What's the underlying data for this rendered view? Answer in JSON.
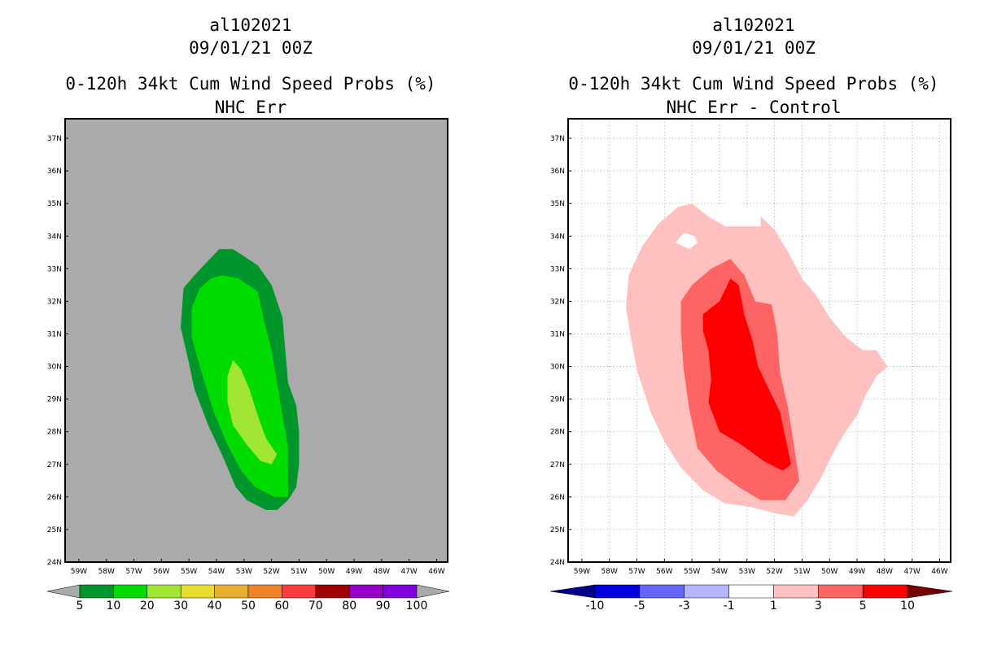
{
  "chart_data": [
    {
      "type": "heatmap",
      "storm_id": "al102021",
      "datetime": "09/01/21 00Z",
      "title": "0-120h 34kt Cum Wind Speed Probs (%)",
      "subtitle": "NHC Err",
      "background": "#aaaaaa",
      "grid": false,
      "x_ticks": [
        "59W",
        "58W",
        "57W",
        "56W",
        "55W",
        "54W",
        "53W",
        "52W",
        "51W",
        "50W",
        "49W",
        "48W",
        "47W",
        "46W"
      ],
      "y_ticks": [
        "24N",
        "25N",
        "26N",
        "27N",
        "28N",
        "29N",
        "30N",
        "31N",
        "32N",
        "33N",
        "34N",
        "35N",
        "36N",
        "37N"
      ],
      "xlim": [
        -59.5,
        -45.6
      ],
      "ylim": [
        24,
        37.6
      ],
      "colorbar": {
        "ticks": [
          "5",
          "10",
          "20",
          "30",
          "40",
          "50",
          "60",
          "70",
          "80",
          "90",
          "100"
        ],
        "colors": [
          "#00962b",
          "#00dc00",
          "#a0e632",
          "#e6dc32",
          "#e6af2d",
          "#f08228",
          "#fa3c3c",
          "#a00000",
          "#9500c8",
          "#8200dc"
        ],
        "end_color": "#aaaaaa"
      },
      "contours": [
        {
          "level": "5-10%",
          "color": "#00962b",
          "points": [
            [
              -53.9,
              33.6
            ],
            [
              -53.4,
              33.6
            ],
            [
              -52.5,
              33.1
            ],
            [
              -52.0,
              32.5
            ],
            [
              -51.6,
              31.5
            ],
            [
              -51.5,
              30.5
            ],
            [
              -51.4,
              29.5
            ],
            [
              -51.1,
              28.8
            ],
            [
              -51.0,
              28.0
            ],
            [
              -51.0,
              27.0
            ],
            [
              -51.1,
              26.3
            ],
            [
              -51.4,
              25.9
            ],
            [
              -51.8,
              25.6
            ],
            [
              -52.2,
              25.6
            ],
            [
              -52.9,
              25.9
            ],
            [
              -53.3,
              26.3
            ],
            [
              -53.8,
              27.3
            ],
            [
              -54.3,
              28.2
            ],
            [
              -54.8,
              29.3
            ],
            [
              -55.0,
              30.1
            ],
            [
              -55.3,
              31.2
            ],
            [
              -55.2,
              32.4
            ],
            [
              -54.8,
              32.8
            ]
          ]
        },
        {
          "level": "10-20%",
          "color": "#00dc00",
          "points": [
            [
              -53.8,
              32.8
            ],
            [
              -53.2,
              32.7
            ],
            [
              -52.5,
              32.3
            ],
            [
              -52.3,
              31.5
            ],
            [
              -52.0,
              30.5
            ],
            [
              -51.8,
              29.5
            ],
            [
              -51.6,
              28.5
            ],
            [
              -51.4,
              27.5
            ],
            [
              -51.4,
              26.8
            ],
            [
              -51.4,
              26.0
            ],
            [
              -51.9,
              26.0
            ],
            [
              -52.6,
              26.3
            ],
            [
              -53.1,
              26.8
            ],
            [
              -53.6,
              27.6
            ],
            [
              -54.1,
              28.6
            ],
            [
              -54.5,
              29.7
            ],
            [
              -54.9,
              30.9
            ],
            [
              -54.9,
              31.8
            ],
            [
              -54.6,
              32.4
            ],
            [
              -54.2,
              32.7
            ]
          ]
        },
        {
          "level": "20-30%",
          "color": "#a0e632",
          "points": [
            [
              -53.4,
              30.2
            ],
            [
              -53.1,
              29.9
            ],
            [
              -52.8,
              29.3
            ],
            [
              -52.5,
              28.5
            ],
            [
              -52.2,
              27.8
            ],
            [
              -51.8,
              27.3
            ],
            [
              -52.0,
              27.0
            ],
            [
              -52.4,
              27.1
            ],
            [
              -52.9,
              27.6
            ],
            [
              -53.4,
              28.2
            ],
            [
              -53.6,
              28.9
            ],
            [
              -53.6,
              29.7
            ]
          ]
        }
      ]
    },
    {
      "type": "heatmap",
      "storm_id": "al102021",
      "datetime": "09/01/21 00Z",
      "title": "0-120h 34kt Cum Wind Speed Probs (%)",
      "subtitle": "NHC Err - Control",
      "background": "#ffffff",
      "grid": true,
      "x_ticks": [
        "59W",
        "58W",
        "57W",
        "56W",
        "55W",
        "54W",
        "53W",
        "52W",
        "51W",
        "50W",
        "49W",
        "48W",
        "47W",
        "46W"
      ],
      "y_ticks": [
        "24N",
        "25N",
        "26N",
        "27N",
        "28N",
        "29N",
        "30N",
        "31N",
        "32N",
        "33N",
        "34N",
        "35N",
        "36N",
        "37N"
      ],
      "xlim": [
        -59.5,
        -45.6
      ],
      "ylim": [
        24,
        37.6
      ],
      "colorbar": {
        "ticks": [
          "-10",
          "-5",
          "-3",
          "-1",
          "1",
          "3",
          "5",
          "10"
        ],
        "colors": [
          "#0000e1",
          "#6464ff",
          "#b4b4ff",
          "#ffffff",
          "#ffc0c0",
          "#ff6464",
          "#ff0000"
        ],
        "low_end_color": "#00008c",
        "high_end_color": "#780000"
      },
      "contours": [
        {
          "level": "1-3",
          "color": "#ffc0c0",
          "points": [
            [
              -55.5,
              34.9
            ],
            [
              -55.0,
              35.0
            ],
            [
              -54.4,
              34.6
            ],
            [
              -53.8,
              34.3
            ],
            [
              -53.0,
              34.3
            ],
            [
              -52.5,
              34.6
            ],
            [
              -52.0,
              34.2
            ],
            [
              -51.5,
              33.5
            ],
            [
              -51.0,
              32.7
            ],
            [
              -50.5,
              32.2
            ],
            [
              -50.0,
              31.5
            ],
            [
              -49.4,
              30.9
            ],
            [
              -48.8,
              30.5
            ],
            [
              -48.3,
              30.5
            ],
            [
              -47.9,
              30.0
            ],
            [
              -48.3,
              29.7
            ],
            [
              -48.7,
              29.1
            ],
            [
              -49.0,
              28.5
            ],
            [
              -49.5,
              27.9
            ],
            [
              -49.9,
              27.3
            ],
            [
              -50.3,
              26.6
            ],
            [
              -50.8,
              25.9
            ],
            [
              -51.3,
              25.4
            ],
            [
              -52.0,
              25.5
            ],
            [
              -52.9,
              25.7
            ],
            [
              -53.8,
              25.8
            ],
            [
              -54.6,
              26.2
            ],
            [
              -55.4,
              26.9
            ],
            [
              -56.0,
              27.7
            ],
            [
              -56.5,
              28.6
            ],
            [
              -57.0,
              29.9
            ],
            [
              -57.2,
              30.8
            ],
            [
              -57.4,
              31.8
            ],
            [
              -57.3,
              32.8
            ],
            [
              -56.8,
              33.7
            ],
            [
              -56.2,
              34.4
            ]
          ]
        },
        {
          "level": "3-5",
          "color": "#ff6464",
          "points": [
            [
              -53.6,
              33.3
            ],
            [
              -53.1,
              32.8
            ],
            [
              -52.7,
              32.0
            ],
            [
              -52.1,
              31.9
            ],
            [
              -51.9,
              31.0
            ],
            [
              -51.8,
              29.8
            ],
            [
              -51.5,
              28.7
            ],
            [
              -51.3,
              27.6
            ],
            [
              -51.1,
              26.5
            ],
            [
              -51.6,
              25.9
            ],
            [
              -52.5,
              25.9
            ],
            [
              -53.3,
              26.3
            ],
            [
              -54.1,
              26.8
            ],
            [
              -54.8,
              27.5
            ],
            [
              -55.1,
              28.7
            ],
            [
              -55.3,
              29.9
            ],
            [
              -55.4,
              31.1
            ],
            [
              -55.4,
              32.0
            ],
            [
              -55.0,
              32.5
            ],
            [
              -54.3,
              33.0
            ]
          ]
        },
        {
          "level": "5-10",
          "color": "#ff0000",
          "points": [
            [
              -53.6,
              32.7
            ],
            [
              -53.3,
              32.5
            ],
            [
              -53.1,
              31.6
            ],
            [
              -52.8,
              30.8
            ],
            [
              -52.6,
              30.0
            ],
            [
              -52.2,
              29.3
            ],
            [
              -51.8,
              28.6
            ],
            [
              -51.6,
              27.8
            ],
            [
              -51.4,
              27.0
            ],
            [
              -51.7,
              26.8
            ],
            [
              -52.4,
              27.1
            ],
            [
              -53.2,
              27.6
            ],
            [
              -54.0,
              28.0
            ],
            [
              -54.4,
              28.9
            ],
            [
              -54.3,
              29.6
            ],
            [
              -54.4,
              30.5
            ],
            [
              -54.6,
              31.1
            ],
            [
              -54.6,
              31.6
            ],
            [
              -54.0,
              32.0
            ]
          ]
        },
        {
          "level": "-1-1 hole",
          "color": "#ffffff",
          "points": [
            [
              -55.6,
              33.8
            ],
            [
              -55.3,
              34.1
            ],
            [
              -54.9,
              34.0
            ],
            [
              -54.8,
              33.8
            ],
            [
              -55.1,
              33.6
            ]
          ]
        },
        {
          "level": "-1-1 top",
          "color": "#ffffff",
          "points": [
            [
              -53.4,
              35.1
            ],
            [
              -52.5,
              34.6
            ],
            [
              -52.5,
              34.3
            ],
            [
              -53.0,
              34.3
            ],
            [
              -53.8,
              34.4
            ],
            [
              -54.3,
              34.6
            ],
            [
              -54.1,
              34.9
            ]
          ]
        }
      ]
    }
  ]
}
